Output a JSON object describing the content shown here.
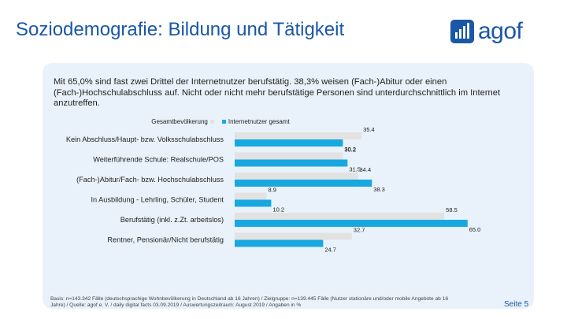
{
  "header": {
    "title": "Soziodemografie: Bildung und Tätigkeit",
    "logo_text": "agof"
  },
  "intro_text": "Mit 65,0% sind fast zwei Drittel der Internetnutzer berufstätig. 38,3% weisen (Fach-)Abitur oder einen (Fach-)Hochschulabschluss auf. Nicht oder nicht mehr berufstätige Personen sind unterdurchschnittlich im Internet anzutreffen.",
  "colors": {
    "brand": "#1a57a6",
    "series1": "#e2e2e2",
    "series2": "#18a8e0",
    "panel": "#e9f2fa"
  },
  "chart_data": {
    "type": "bar",
    "orientation": "horizontal",
    "categories": [
      "Kein Abschluss/Haupt- bzw. Volksschulabschluss",
      "Weiterführende Schule: Realschule/POS",
      "(Fach-)Abitur/Fach- bzw. Hochschulabschluss",
      "In Ausbildung - Lehrling, Schüler, Student",
      "Berufstätig (inkl. z.Zt. arbeitslos)",
      "Rentner, Pensionär/Nicht berufstätig"
    ],
    "series": [
      {
        "name": "Gesamtbevölkerung",
        "values": [
          35.4,
          30.2,
          34.4,
          8.9,
          58.5,
          32.7
        ],
        "labels": [
          "35.4",
          "30.2",
          "34.4",
          "8.9",
          "58.5",
          "32.7"
        ]
      },
      {
        "name": "Internetnutzer gesamt",
        "values": [
          30.2,
          31.5,
          38.3,
          10.2,
          65.0,
          24.7
        ],
        "labels": [
          "30.2",
          "31.5",
          "38.3",
          "10.2",
          "65.0",
          "24.7"
        ]
      }
    ],
    "xlim": [
      0,
      70
    ],
    "legend": "top",
    "grid": false
  },
  "footer": {
    "basis": "Basis: n=143.342 Fälle (deutschsprachige Wohnbevölkerung in Deutschland ab 16 Jahren) / Zielgruppe: n=139.445 Fälle (Nutzer stationäre und/oder mobile Angebote ab 16 Jahre) / Quelle: agof e. V. / daily digital facts 03.09.2019 / Auswertungszeitraum: August 2019 / Angaben in %",
    "page": "Seite 5"
  }
}
